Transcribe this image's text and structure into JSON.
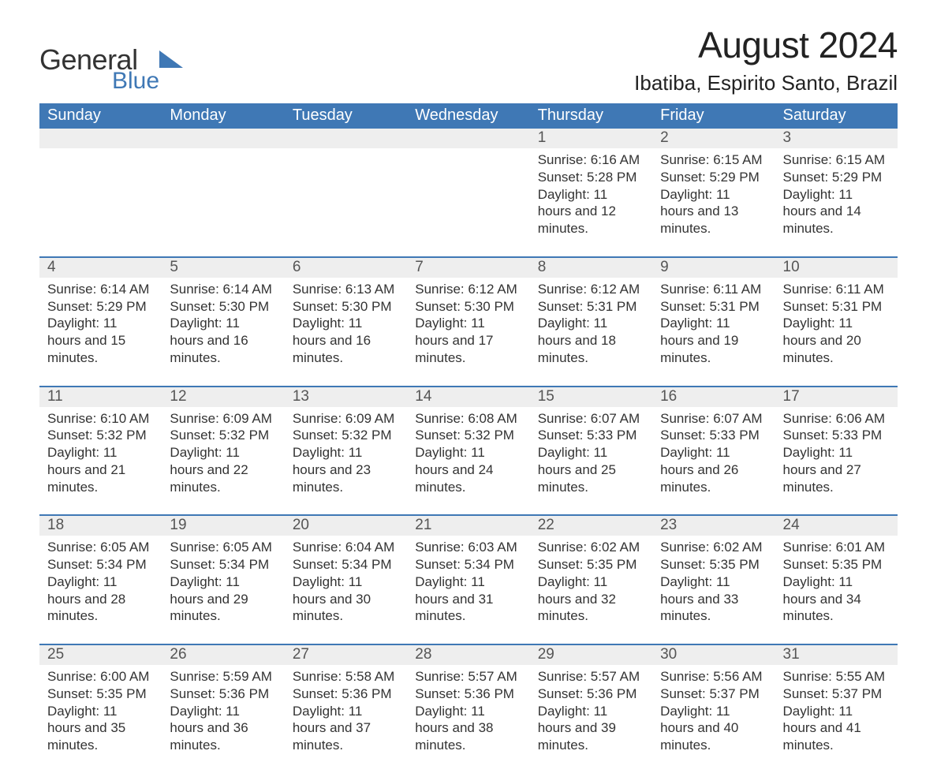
{
  "logo": {
    "word1": "General",
    "word2": "Blue",
    "accent_color": "#3f78b5"
  },
  "title": "August 2024",
  "location": "Ibatiba, Espirito Santo, Brazil",
  "colors": {
    "header_bg": "#3f78b5",
    "daynum_bg": "#eeeeee",
    "text": "#333333",
    "white": "#ffffff"
  },
  "days_of_week": [
    "Sunday",
    "Monday",
    "Tuesday",
    "Wednesday",
    "Thursday",
    "Friday",
    "Saturday"
  ],
  "labels": {
    "sunrise": "Sunrise:",
    "sunset": "Sunset:",
    "daylight": "Daylight:"
  },
  "weeks": [
    [
      null,
      null,
      null,
      null,
      {
        "n": "1",
        "sunrise": "6:16 AM",
        "sunset": "5:28 PM",
        "daylight": "11 hours and 12 minutes."
      },
      {
        "n": "2",
        "sunrise": "6:15 AM",
        "sunset": "5:29 PM",
        "daylight": "11 hours and 13 minutes."
      },
      {
        "n": "3",
        "sunrise": "6:15 AM",
        "sunset": "5:29 PM",
        "daylight": "11 hours and 14 minutes."
      }
    ],
    [
      {
        "n": "4",
        "sunrise": "6:14 AM",
        "sunset": "5:29 PM",
        "daylight": "11 hours and 15 minutes."
      },
      {
        "n": "5",
        "sunrise": "6:14 AM",
        "sunset": "5:30 PM",
        "daylight": "11 hours and 16 minutes."
      },
      {
        "n": "6",
        "sunrise": "6:13 AM",
        "sunset": "5:30 PM",
        "daylight": "11 hours and 16 minutes."
      },
      {
        "n": "7",
        "sunrise": "6:12 AM",
        "sunset": "5:30 PM",
        "daylight": "11 hours and 17 minutes."
      },
      {
        "n": "8",
        "sunrise": "6:12 AM",
        "sunset": "5:31 PM",
        "daylight": "11 hours and 18 minutes."
      },
      {
        "n": "9",
        "sunrise": "6:11 AM",
        "sunset": "5:31 PM",
        "daylight": "11 hours and 19 minutes."
      },
      {
        "n": "10",
        "sunrise": "6:11 AM",
        "sunset": "5:31 PM",
        "daylight": "11 hours and 20 minutes."
      }
    ],
    [
      {
        "n": "11",
        "sunrise": "6:10 AM",
        "sunset": "5:32 PM",
        "daylight": "11 hours and 21 minutes."
      },
      {
        "n": "12",
        "sunrise": "6:09 AM",
        "sunset": "5:32 PM",
        "daylight": "11 hours and 22 minutes."
      },
      {
        "n": "13",
        "sunrise": "6:09 AM",
        "sunset": "5:32 PM",
        "daylight": "11 hours and 23 minutes."
      },
      {
        "n": "14",
        "sunrise": "6:08 AM",
        "sunset": "5:32 PM",
        "daylight": "11 hours and 24 minutes."
      },
      {
        "n": "15",
        "sunrise": "6:07 AM",
        "sunset": "5:33 PM",
        "daylight": "11 hours and 25 minutes."
      },
      {
        "n": "16",
        "sunrise": "6:07 AM",
        "sunset": "5:33 PM",
        "daylight": "11 hours and 26 minutes."
      },
      {
        "n": "17",
        "sunrise": "6:06 AM",
        "sunset": "5:33 PM",
        "daylight": "11 hours and 27 minutes."
      }
    ],
    [
      {
        "n": "18",
        "sunrise": "6:05 AM",
        "sunset": "5:34 PM",
        "daylight": "11 hours and 28 minutes."
      },
      {
        "n": "19",
        "sunrise": "6:05 AM",
        "sunset": "5:34 PM",
        "daylight": "11 hours and 29 minutes."
      },
      {
        "n": "20",
        "sunrise": "6:04 AM",
        "sunset": "5:34 PM",
        "daylight": "11 hours and 30 minutes."
      },
      {
        "n": "21",
        "sunrise": "6:03 AM",
        "sunset": "5:34 PM",
        "daylight": "11 hours and 31 minutes."
      },
      {
        "n": "22",
        "sunrise": "6:02 AM",
        "sunset": "5:35 PM",
        "daylight": "11 hours and 32 minutes."
      },
      {
        "n": "23",
        "sunrise": "6:02 AM",
        "sunset": "5:35 PM",
        "daylight": "11 hours and 33 minutes."
      },
      {
        "n": "24",
        "sunrise": "6:01 AM",
        "sunset": "5:35 PM",
        "daylight": "11 hours and 34 minutes."
      }
    ],
    [
      {
        "n": "25",
        "sunrise": "6:00 AM",
        "sunset": "5:35 PM",
        "daylight": "11 hours and 35 minutes."
      },
      {
        "n": "26",
        "sunrise": "5:59 AM",
        "sunset": "5:36 PM",
        "daylight": "11 hours and 36 minutes."
      },
      {
        "n": "27",
        "sunrise": "5:58 AM",
        "sunset": "5:36 PM",
        "daylight": "11 hours and 37 minutes."
      },
      {
        "n": "28",
        "sunrise": "5:57 AM",
        "sunset": "5:36 PM",
        "daylight": "11 hours and 38 minutes."
      },
      {
        "n": "29",
        "sunrise": "5:57 AM",
        "sunset": "5:36 PM",
        "daylight": "11 hours and 39 minutes."
      },
      {
        "n": "30",
        "sunrise": "5:56 AM",
        "sunset": "5:37 PM",
        "daylight": "11 hours and 40 minutes."
      },
      {
        "n": "31",
        "sunrise": "5:55 AM",
        "sunset": "5:37 PM",
        "daylight": "11 hours and 41 minutes."
      }
    ]
  ]
}
